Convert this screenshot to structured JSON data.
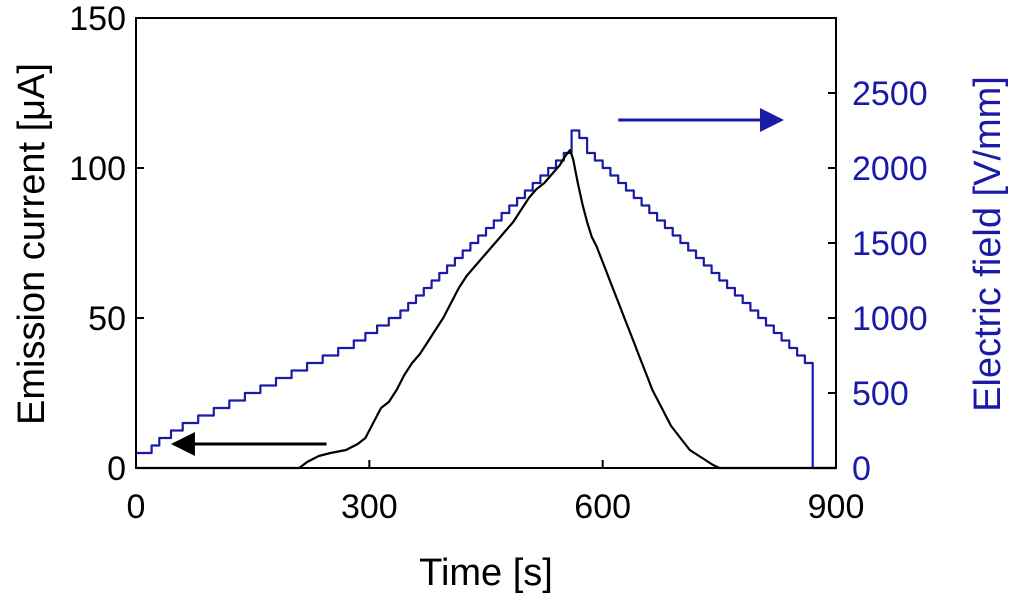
{
  "chart_data": {
    "type": "line",
    "title": "",
    "xlabel": "Time [s]",
    "ylabel_left": "Emission current [μA]",
    "ylabel_right": "Electric field [V/mm]",
    "xlim": [
      0,
      900
    ],
    "ylim_left": [
      0,
      150
    ],
    "ylim_right": [
      0,
      3000
    ],
    "x_ticks": [
      0,
      300,
      600,
      900
    ],
    "y_ticks_left": [
      0,
      50,
      100,
      150
    ],
    "y_ticks_right": [
      0,
      500,
      1000,
      1500,
      2000,
      2500
    ],
    "grid": false,
    "legend": "none",
    "colors": {
      "current": "#000000",
      "field": "#1a1aa8",
      "axis": "#000000"
    },
    "series": [
      {
        "axis": "right",
        "color": "#1a1aa8",
        "points": [
          [
            0,
            100
          ],
          [
            20,
            100
          ],
          [
            20,
            150
          ],
          [
            30,
            150
          ],
          [
            30,
            200
          ],
          [
            45,
            200
          ],
          [
            45,
            250
          ],
          [
            60,
            250
          ],
          [
            60,
            300
          ],
          [
            80,
            300
          ],
          [
            80,
            350
          ],
          [
            100,
            350
          ],
          [
            100,
            400
          ],
          [
            120,
            400
          ],
          [
            120,
            450
          ],
          [
            140,
            450
          ],
          [
            140,
            500
          ],
          [
            160,
            500
          ],
          [
            160,
            550
          ],
          [
            180,
            550
          ],
          [
            180,
            600
          ],
          [
            200,
            600
          ],
          [
            200,
            650
          ],
          [
            220,
            650
          ],
          [
            220,
            700
          ],
          [
            240,
            700
          ],
          [
            240,
            750
          ],
          [
            260,
            750
          ],
          [
            260,
            800
          ],
          [
            280,
            800
          ],
          [
            280,
            850
          ],
          [
            295,
            850
          ],
          [
            295,
            900
          ],
          [
            310,
            900
          ],
          [
            310,
            950
          ],
          [
            325,
            950
          ],
          [
            325,
            1000
          ],
          [
            340,
            1000
          ],
          [
            340,
            1050
          ],
          [
            350,
            1050
          ],
          [
            350,
            1100
          ],
          [
            360,
            1100
          ],
          [
            360,
            1150
          ],
          [
            370,
            1150
          ],
          [
            370,
            1200
          ],
          [
            380,
            1200
          ],
          [
            380,
            1250
          ],
          [
            390,
            1250
          ],
          [
            390,
            1300
          ],
          [
            400,
            1300
          ],
          [
            400,
            1350
          ],
          [
            410,
            1350
          ],
          [
            410,
            1400
          ],
          [
            420,
            1400
          ],
          [
            420,
            1450
          ],
          [
            430,
            1450
          ],
          [
            430,
            1500
          ],
          [
            440,
            1500
          ],
          [
            440,
            1550
          ],
          [
            450,
            1550
          ],
          [
            450,
            1600
          ],
          [
            460,
            1600
          ],
          [
            460,
            1650
          ],
          [
            470,
            1650
          ],
          [
            470,
            1700
          ],
          [
            480,
            1700
          ],
          [
            480,
            1750
          ],
          [
            490,
            1750
          ],
          [
            490,
            1800
          ],
          [
            500,
            1800
          ],
          [
            500,
            1850
          ],
          [
            510,
            1850
          ],
          [
            510,
            1900
          ],
          [
            520,
            1900
          ],
          [
            520,
            1950
          ],
          [
            530,
            1950
          ],
          [
            530,
            2000
          ],
          [
            540,
            2000
          ],
          [
            540,
            2050
          ],
          [
            550,
            2050
          ],
          [
            550,
            2100
          ],
          [
            560,
            2100
          ],
          [
            560,
            2250
          ],
          [
            570,
            2250
          ],
          [
            570,
            2200
          ],
          [
            580,
            2200
          ],
          [
            580,
            2100
          ],
          [
            590,
            2100
          ],
          [
            590,
            2050
          ],
          [
            600,
            2050
          ],
          [
            600,
            2000
          ],
          [
            610,
            2000
          ],
          [
            610,
            1950
          ],
          [
            620,
            1950
          ],
          [
            620,
            1900
          ],
          [
            630,
            1900
          ],
          [
            630,
            1850
          ],
          [
            640,
            1850
          ],
          [
            640,
            1800
          ],
          [
            650,
            1800
          ],
          [
            650,
            1750
          ],
          [
            660,
            1750
          ],
          [
            660,
            1700
          ],
          [
            670,
            1700
          ],
          [
            670,
            1650
          ],
          [
            680,
            1650
          ],
          [
            680,
            1600
          ],
          [
            690,
            1600
          ],
          [
            690,
            1550
          ],
          [
            700,
            1550
          ],
          [
            700,
            1500
          ],
          [
            710,
            1500
          ],
          [
            710,
            1450
          ],
          [
            720,
            1450
          ],
          [
            720,
            1400
          ],
          [
            730,
            1400
          ],
          [
            730,
            1350
          ],
          [
            740,
            1350
          ],
          [
            740,
            1300
          ],
          [
            750,
            1300
          ],
          [
            750,
            1250
          ],
          [
            760,
            1250
          ],
          [
            760,
            1200
          ],
          [
            770,
            1200
          ],
          [
            770,
            1150
          ],
          [
            780,
            1150
          ],
          [
            780,
            1100
          ],
          [
            790,
            1100
          ],
          [
            790,
            1050
          ],
          [
            800,
            1050
          ],
          [
            800,
            1000
          ],
          [
            810,
            1000
          ],
          [
            810,
            950
          ],
          [
            820,
            950
          ],
          [
            820,
            900
          ],
          [
            830,
            900
          ],
          [
            830,
            850
          ],
          [
            840,
            850
          ],
          [
            840,
            800
          ],
          [
            850,
            800
          ],
          [
            850,
            750
          ],
          [
            860,
            750
          ],
          [
            860,
            700
          ],
          [
            870,
            700
          ],
          [
            870,
            0
          ],
          [
            900,
            0
          ]
        ]
      },
      {
        "axis": "left",
        "color": "#000000",
        "points": [
          [
            0,
            0
          ],
          [
            210,
            0
          ],
          [
            220,
            2
          ],
          [
            235,
            4
          ],
          [
            250,
            5
          ],
          [
            270,
            6
          ],
          [
            285,
            8
          ],
          [
            295,
            10
          ],
          [
            305,
            15
          ],
          [
            315,
            20
          ],
          [
            325,
            22
          ],
          [
            335,
            26
          ],
          [
            345,
            31
          ],
          [
            355,
            35
          ],
          [
            365,
            38
          ],
          [
            375,
            42
          ],
          [
            385,
            46
          ],
          [
            395,
            50
          ],
          [
            405,
            55
          ],
          [
            415,
            60
          ],
          [
            425,
            64
          ],
          [
            435,
            67
          ],
          [
            445,
            70
          ],
          [
            455,
            73
          ],
          [
            465,
            76
          ],
          [
            475,
            79
          ],
          [
            485,
            82
          ],
          [
            495,
            86
          ],
          [
            505,
            90
          ],
          [
            515,
            93
          ],
          [
            525,
            95
          ],
          [
            535,
            98
          ],
          [
            545,
            101
          ],
          [
            552,
            104
          ],
          [
            558,
            106
          ],
          [
            562,
            103
          ],
          [
            568,
            95
          ],
          [
            574,
            88
          ],
          [
            580,
            82
          ],
          [
            586,
            77
          ],
          [
            592,
            74
          ],
          [
            598,
            70
          ],
          [
            604,
            66
          ],
          [
            610,
            62
          ],
          [
            616,
            58
          ],
          [
            622,
            54
          ],
          [
            628,
            50
          ],
          [
            634,
            46
          ],
          [
            640,
            42
          ],
          [
            646,
            38
          ],
          [
            652,
            34
          ],
          [
            658,
            30
          ],
          [
            664,
            26
          ],
          [
            670,
            23
          ],
          [
            676,
            20
          ],
          [
            682,
            17
          ],
          [
            688,
            14
          ],
          [
            694,
            12
          ],
          [
            700,
            10
          ],
          [
            706,
            8
          ],
          [
            712,
            6
          ],
          [
            718,
            5
          ],
          [
            724,
            4
          ],
          [
            730,
            3
          ],
          [
            736,
            2
          ],
          [
            742,
            1
          ],
          [
            750,
            0
          ],
          [
            900,
            0
          ]
        ]
      }
    ],
    "annotations": [
      {
        "type": "arrow",
        "points_to": "left",
        "color": "#000000",
        "from": [
          245,
          8
        ],
        "to": [
          48,
          8
        ]
      },
      {
        "type": "arrow",
        "points_to": "right",
        "color": "#1a1aa8",
        "from": [
          620,
          2320
        ],
        "to": [
          830,
          2320
        ]
      }
    ]
  }
}
